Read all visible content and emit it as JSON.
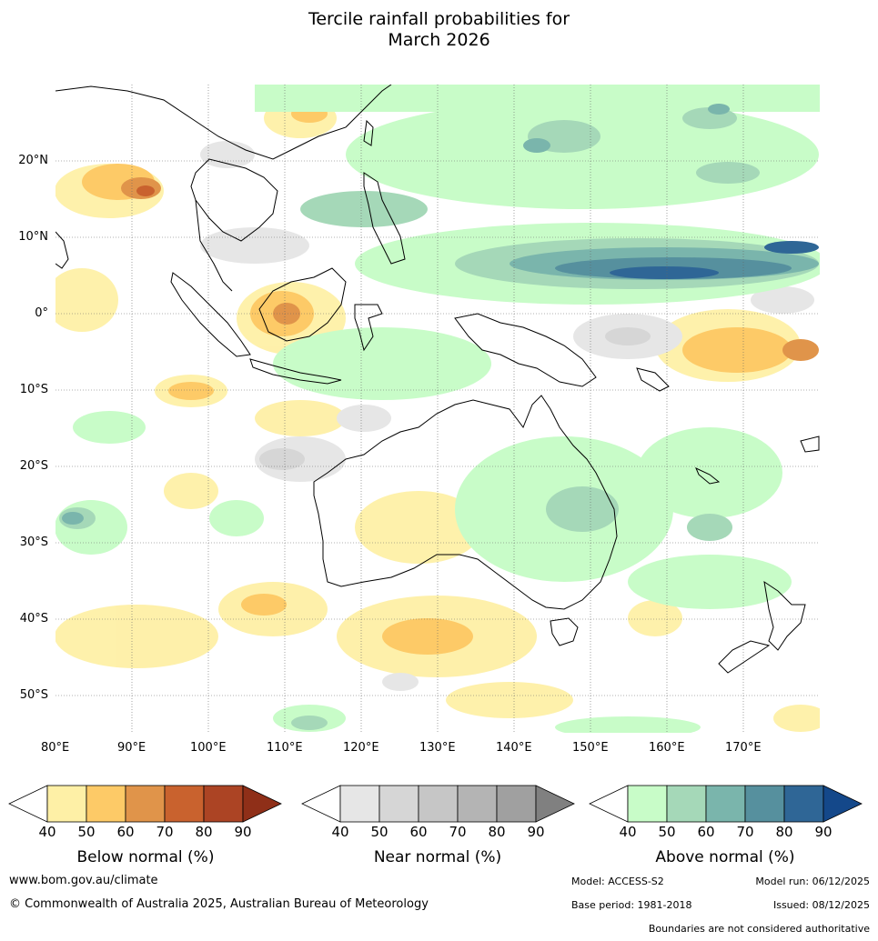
{
  "title_line1": "Tercile rainfall probabilities for",
  "title_line2": "March 2026",
  "lon_labels": [
    "80°E",
    "90°E",
    "100°E",
    "110°E",
    "120°E",
    "130°E",
    "140°E",
    "150°E",
    "160°E",
    "170°E"
  ],
  "lat_labels": [
    "20°N",
    "10°N",
    "0°",
    "10°S",
    "20°S",
    "30°S",
    "40°S",
    "50°S"
  ],
  "colorbars": [
    {
      "title": "Below normal (%)",
      "ticks": [
        "40",
        "50",
        "60",
        "70",
        "80",
        "90"
      ],
      "colors": [
        "#fef0a6",
        "#fdca67",
        "#e0944a",
        "#c9622e",
        "#ac4424",
        "#8f2f18"
      ]
    },
    {
      "title": "Near normal (%)",
      "ticks": [
        "40",
        "50",
        "60",
        "70",
        "80",
        "90"
      ],
      "colors": [
        "#e6e6e6",
        "#d6d6d6",
        "#c6c6c6",
        "#b4b4b4",
        "#a0a0a0",
        "#808080"
      ]
    },
    {
      "title": "Above normal (%)",
      "ticks": [
        "40",
        "50",
        "60",
        "70",
        "80",
        "90"
      ],
      "colors": [
        "#c8fcc8",
        "#a5d8b8",
        "#7ab5ac",
        "#56909e",
        "#2f6696",
        "#14488a"
      ]
    }
  ],
  "footer": {
    "website": "www.bom.gov.au/climate",
    "copyright": "© Commonwealth of Australia 2025, Australian Bureau of Meteorology",
    "model": "Model: ACCESS-S2",
    "base_period": "Base period: 1981-2018",
    "model_run": "Model run: 06/12/2025",
    "issued": "Issued: 08/12/2025",
    "disclaimer": "Boundaries are not considered authoritative"
  }
}
